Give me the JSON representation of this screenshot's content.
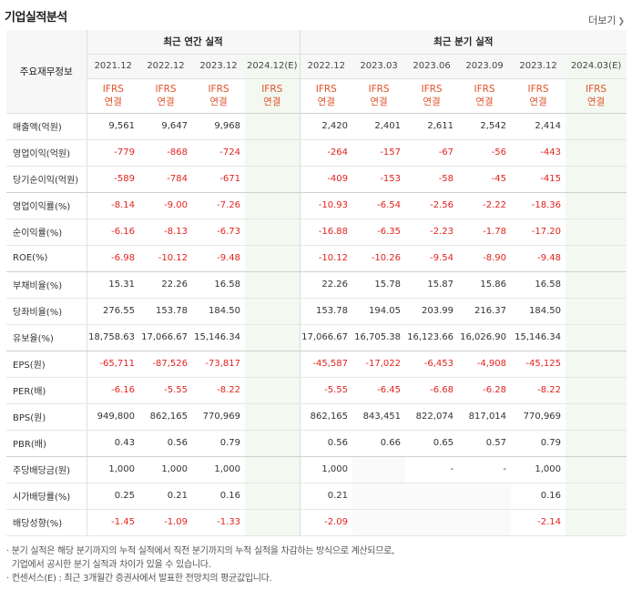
{
  "title": "기업실적분석",
  "more_label": "더보기",
  "header": {
    "row_label": "주요재무정보",
    "annual_group": "최근 연간 실적",
    "quarter_group": "최근 분기 실적",
    "annual_periods": [
      "2021.12",
      "2022.12",
      "2023.12",
      "2024.12(E)"
    ],
    "quarter_periods": [
      "2022.12",
      "2023.03",
      "2023.06",
      "2023.09",
      "2023.12",
      "2024.03(E)"
    ],
    "ifrs_top": "IFRS",
    "ifrs_bottom": "연결"
  },
  "rows": [
    {
      "label": "매출액(억원)",
      "values": [
        "9,561",
        "9,647",
        "9,968",
        "",
        "2,420",
        "2,401",
        "2,611",
        "2,542",
        "2,414",
        ""
      ]
    },
    {
      "label": "영업이익(억원)",
      "values": [
        "-779",
        "-868",
        "-724",
        "",
        "-264",
        "-157",
        "-67",
        "-56",
        "-443",
        ""
      ]
    },
    {
      "label": "당기순이익(억원)",
      "values": [
        "-589",
        "-784",
        "-671",
        "",
        "-409",
        "-153",
        "-58",
        "-45",
        "-415",
        ""
      ]
    },
    {
      "label": "영업이익률(%)",
      "values": [
        "-8.14",
        "-9.00",
        "-7.26",
        "",
        "-10.93",
        "-6.54",
        "-2.56",
        "-2.22",
        "-18.36",
        ""
      ]
    },
    {
      "label": "순이익률(%)",
      "values": [
        "-6.16",
        "-8.13",
        "-6.73",
        "",
        "-16.88",
        "-6.35",
        "-2.23",
        "-1.78",
        "-17.20",
        ""
      ]
    },
    {
      "label": "ROE(%)",
      "values": [
        "-6.98",
        "-10.12",
        "-9.48",
        "",
        "-10.12",
        "-10.26",
        "-9.54",
        "-8.90",
        "-9.48",
        ""
      ]
    },
    {
      "label": "부채비율(%)",
      "values": [
        "15.31",
        "22.26",
        "16.58",
        "",
        "22.26",
        "15.78",
        "15.87",
        "15.86",
        "16.58",
        ""
      ]
    },
    {
      "label": "당좌비율(%)",
      "values": [
        "276.55",
        "153.78",
        "184.50",
        "",
        "153.78",
        "194.05",
        "203.99",
        "216.37",
        "184.50",
        ""
      ]
    },
    {
      "label": "유보율(%)",
      "values": [
        "18,758.63",
        "17,066.67",
        "15,146.34",
        "",
        "17,066.67",
        "16,705.38",
        "16,123.66",
        "16,026.90",
        "15,146.34",
        ""
      ]
    },
    {
      "label": "EPS(원)",
      "values": [
        "-65,711",
        "-87,526",
        "-73,817",
        "",
        "-45,587",
        "-17,022",
        "-6,453",
        "-4,908",
        "-45,125",
        ""
      ]
    },
    {
      "label": "PER(배)",
      "values": [
        "-6.16",
        "-5.55",
        "-8.22",
        "",
        "-5.55",
        "-6.45",
        "-6.68",
        "-6.28",
        "-8.22",
        ""
      ]
    },
    {
      "label": "BPS(원)",
      "values": [
        "949,800",
        "862,165",
        "770,969",
        "",
        "862,165",
        "843,451",
        "822,074",
        "817,014",
        "770,969",
        ""
      ]
    },
    {
      "label": "PBR(배)",
      "values": [
        "0.43",
        "0.56",
        "0.79",
        "",
        "0.56",
        "0.66",
        "0.65",
        "0.57",
        "0.79",
        ""
      ]
    },
    {
      "label": "주당배당금(원)",
      "values": [
        "1,000",
        "1,000",
        "1,000",
        "",
        "1,000",
        "",
        "-",
        "-",
        "1,000",
        ""
      ]
    },
    {
      "label": "시가배당률(%)",
      "values": [
        "0.25",
        "0.21",
        "0.16",
        "",
        "0.21",
        "",
        "",
        "",
        "0.16",
        ""
      ]
    },
    {
      "label": "배당성향(%)",
      "values": [
        "-1.45",
        "-1.09",
        "-1.33",
        "",
        "-2.09",
        "",
        "",
        "",
        "-2.14",
        ""
      ]
    }
  ],
  "notes": [
    "· 분기 실적은 해당 분기까지의 누적 실적에서 직전 분기까지의 누적 실적을 차감하는 방식으로 계산되므로,",
    "  기업에서 공시한 분기 실적과 차이가 있을 수 있습니다.",
    "· 컨센서스(E) : 최근 3개월간 증권사에서 발표한 전망치의 평균값입니다."
  ]
}
